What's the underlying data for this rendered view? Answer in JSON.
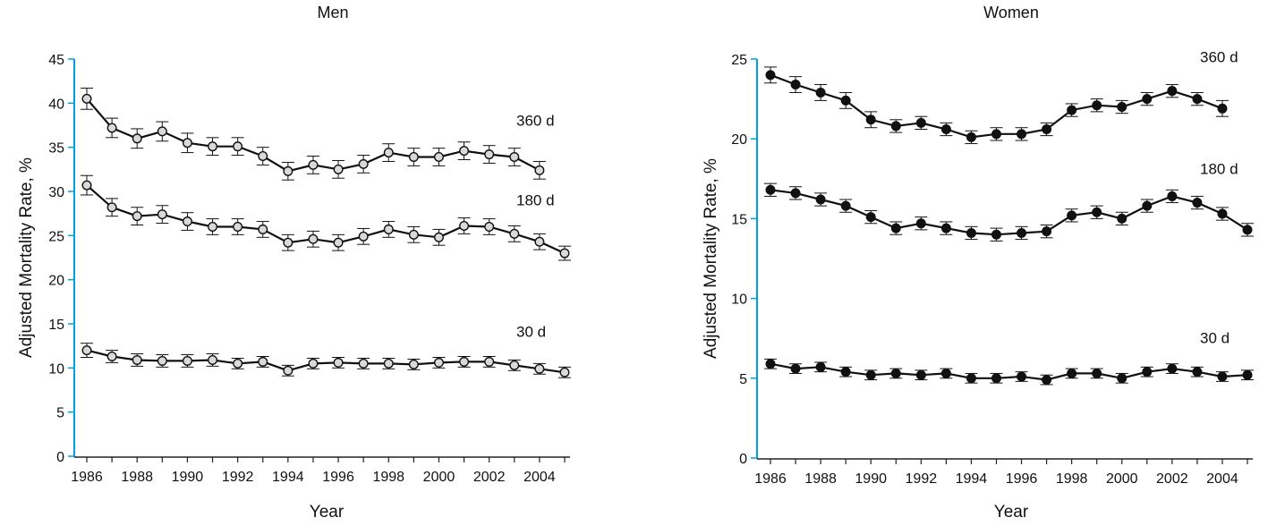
{
  "figure": {
    "colors": {
      "axis": "#00a0e0",
      "line": "#111111",
      "men_marker_fill": "#d9d9d9",
      "women_marker_fill": "#111111"
    }
  },
  "chart_data": [
    {
      "type": "line",
      "title": "Men",
      "xlabel": "Year",
      "ylabel": "Adjusted Mortality Rate, %",
      "xlim": [
        1986,
        2005
      ],
      "ylim": [
        0,
        45
      ],
      "x_ticks": [
        1986,
        1988,
        1990,
        1992,
        1994,
        1996,
        1998,
        2000,
        2002,
        2004
      ],
      "y_ticks": [
        0,
        5,
        10,
        15,
        20,
        25,
        30,
        35,
        40,
        45
      ],
      "marker": "open-circle",
      "error_bars": true,
      "x": [
        1986,
        1987,
        1988,
        1989,
        1990,
        1991,
        1992,
        1993,
        1994,
        1995,
        1996,
        1997,
        1998,
        1999,
        2000,
        2001,
        2002,
        2003,
        2004,
        2005
      ],
      "series": [
        {
          "name": "360 d",
          "x": [
            1986,
            1987,
            1988,
            1989,
            1990,
            1991,
            1992,
            1993,
            1994,
            1995,
            1996,
            1997,
            1998,
            1999,
            2000,
            2001,
            2002,
            2003,
            2004
          ],
          "values": [
            40.5,
            37.2,
            36.0,
            36.8,
            35.5,
            35.1,
            35.1,
            34.0,
            32.3,
            33.0,
            32.5,
            33.1,
            34.4,
            33.9,
            33.9,
            34.6,
            34.2,
            33.9,
            32.4
          ],
          "error": [
            1.2,
            1.1,
            1.1,
            1.1,
            1.1,
            1.0,
            1.0,
            1.0,
            1.0,
            1.0,
            1.0,
            1.0,
            1.0,
            1.0,
            1.0,
            1.0,
            1.0,
            1.0,
            1.0
          ]
        },
        {
          "name": "180 d",
          "x": [
            1986,
            1987,
            1988,
            1989,
            1990,
            1991,
            1992,
            1993,
            1994,
            1995,
            1996,
            1997,
            1998,
            1999,
            2000,
            2001,
            2002,
            2003,
            2004,
            2005
          ],
          "values": [
            30.7,
            28.2,
            27.2,
            27.4,
            26.6,
            26.0,
            26.0,
            25.7,
            24.2,
            24.6,
            24.2,
            24.9,
            25.7,
            25.1,
            24.8,
            26.1,
            26.0,
            25.2,
            24.3,
            23.0
          ],
          "error": [
            1.1,
            1.0,
            1.0,
            1.0,
            1.0,
            0.9,
            0.9,
            0.9,
            0.9,
            0.9,
            0.9,
            0.9,
            0.9,
            0.9,
            0.9,
            0.9,
            0.9,
            0.9,
            0.9,
            0.8
          ]
        },
        {
          "name": "30 d",
          "x": [
            1986,
            1987,
            1988,
            1989,
            1990,
            1991,
            1992,
            1993,
            1994,
            1995,
            1996,
            1997,
            1998,
            1999,
            2000,
            2001,
            2002,
            2003,
            2004,
            2005
          ],
          "values": [
            12.0,
            11.3,
            10.9,
            10.8,
            10.8,
            10.9,
            10.5,
            10.7,
            9.7,
            10.5,
            10.6,
            10.5,
            10.5,
            10.4,
            10.6,
            10.7,
            10.7,
            10.3,
            9.9,
            9.5
          ],
          "error": [
            0.8,
            0.7,
            0.7,
            0.7,
            0.7,
            0.7,
            0.6,
            0.6,
            0.6,
            0.6,
            0.6,
            0.6,
            0.6,
            0.6,
            0.6,
            0.6,
            0.6,
            0.6,
            0.6,
            0.6
          ]
        }
      ],
      "series_label_years": {
        "360 d": 2004.2,
        "180 d": 2004.2,
        "30 d": 2004.2
      }
    },
    {
      "type": "line",
      "title": "Women",
      "xlabel": "Year",
      "ylabel": "Adjusted Mortality Rate, %",
      "xlim": [
        1986,
        2005
      ],
      "ylim": [
        0,
        25
      ],
      "x_ticks": [
        1986,
        1988,
        1990,
        1992,
        1994,
        1996,
        1998,
        2000,
        2002,
        2004
      ],
      "y_ticks": [
        0,
        5,
        10,
        15,
        20,
        25
      ],
      "marker": "filled-circle",
      "error_bars": true,
      "x": [
        1986,
        1987,
        1988,
        1989,
        1990,
        1991,
        1992,
        1993,
        1994,
        1995,
        1996,
        1997,
        1998,
        1999,
        2000,
        2001,
        2002,
        2003,
        2004,
        2005
      ],
      "series": [
        {
          "name": "360 d",
          "x": [
            1986,
            1987,
            1988,
            1989,
            1990,
            1991,
            1992,
            1993,
            1994,
            1995,
            1996,
            1997,
            1998,
            1999,
            2000,
            2001,
            2002,
            2003,
            2004
          ],
          "values": [
            24.0,
            23.4,
            22.9,
            22.4,
            21.2,
            20.8,
            21.0,
            20.6,
            20.1,
            20.3,
            20.3,
            20.6,
            21.8,
            22.1,
            22.0,
            22.5,
            23.0,
            22.5,
            21.9
          ],
          "error": [
            0.5,
            0.5,
            0.5,
            0.5,
            0.5,
            0.4,
            0.4,
            0.4,
            0.4,
            0.4,
            0.4,
            0.4,
            0.4,
            0.4,
            0.4,
            0.4,
            0.4,
            0.4,
            0.5
          ]
        },
        {
          "name": "180 d",
          "x": [
            1986,
            1987,
            1988,
            1989,
            1990,
            1991,
            1992,
            1993,
            1994,
            1995,
            1996,
            1997,
            1998,
            1999,
            2000,
            2001,
            2002,
            2003,
            2004,
            2005
          ],
          "values": [
            16.8,
            16.6,
            16.2,
            15.8,
            15.1,
            14.4,
            14.7,
            14.4,
            14.1,
            14.0,
            14.1,
            14.2,
            15.2,
            15.4,
            15.0,
            15.8,
            16.4,
            16.0,
            15.3,
            14.3
          ],
          "error": [
            0.4,
            0.4,
            0.4,
            0.4,
            0.4,
            0.4,
            0.4,
            0.4,
            0.4,
            0.4,
            0.4,
            0.4,
            0.4,
            0.4,
            0.4,
            0.4,
            0.4,
            0.4,
            0.4,
            0.4
          ]
        },
        {
          "name": "30 d",
          "x": [
            1986,
            1987,
            1988,
            1989,
            1990,
            1991,
            1992,
            1993,
            1994,
            1995,
            1996,
            1997,
            1998,
            1999,
            2000,
            2001,
            2002,
            2003,
            2004,
            2005
          ],
          "values": [
            5.9,
            5.6,
            5.7,
            5.4,
            5.2,
            5.3,
            5.2,
            5.3,
            5.0,
            5.0,
            5.1,
            4.9,
            5.3,
            5.3,
            5.0,
            5.4,
            5.6,
            5.4,
            5.1,
            5.2
          ],
          "error": [
            0.3,
            0.3,
            0.3,
            0.3,
            0.3,
            0.3,
            0.3,
            0.3,
            0.3,
            0.3,
            0.3,
            0.3,
            0.3,
            0.3,
            0.3,
            0.3,
            0.3,
            0.3,
            0.3,
            0.3
          ]
        }
      ],
      "series_label_years": {
        "360 d": 2004.3,
        "180 d": 2004.3,
        "30 d": 2004.3
      }
    }
  ]
}
